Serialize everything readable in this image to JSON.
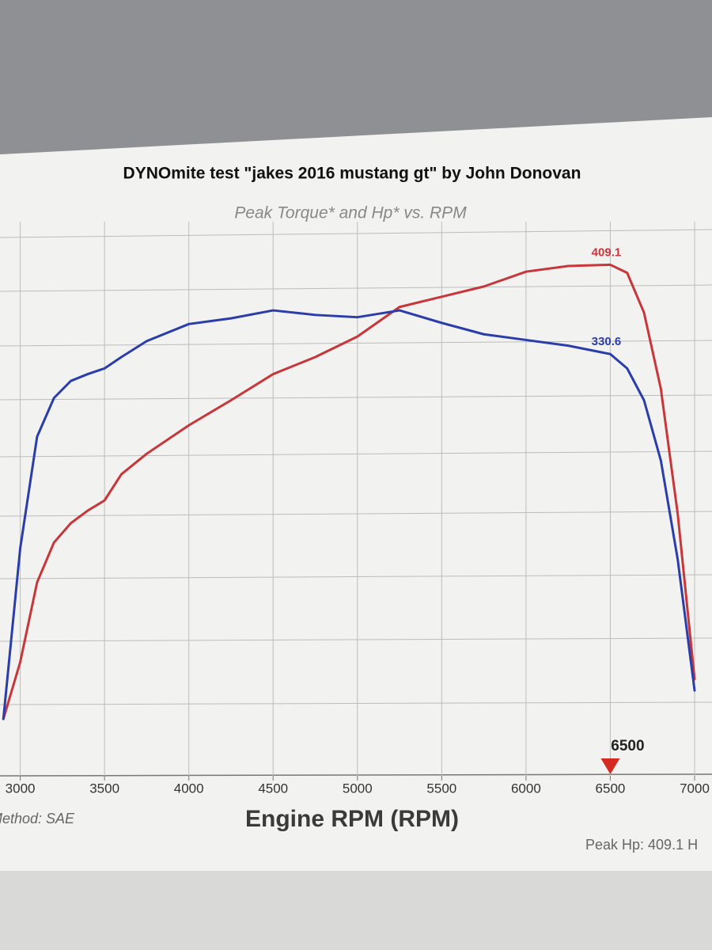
{
  "chart_data": {
    "type": "line",
    "title": "DYNOmite test \"jakes 2016 mustang gt\" by John Donovan",
    "subtitle": "Peak Torque* and Hp* vs. RPM",
    "x_label": "Engine RPM (RPM)",
    "method_note": "Method: SAE",
    "peak_note": "Peak Hp: 409.1 H",
    "x": [
      2900,
      3000,
      3100,
      3200,
      3300,
      3400,
      3500,
      3600,
      3750,
      4000,
      4250,
      4500,
      4750,
      5000,
      5250,
      5500,
      5750,
      6000,
      6250,
      6500,
      6600,
      6700,
      6800,
      6900,
      7000
    ],
    "series": [
      {
        "color": "#c8363a",
        "marked_value": 409.1,
        "values": [
          10,
          60,
          130,
          165,
          182,
          193,
          202,
          225,
          243,
          268,
          290,
          313,
          328,
          346,
          372,
          381,
          390,
          403,
          408,
          409.1,
          402,
          367,
          300,
          190,
          45
        ]
      },
      {
        "color": "#2b3daa",
        "marked_value": 330.6,
        "values": [
          10,
          160,
          258,
          292,
          307,
          313,
          318,
          328,
          342,
          357,
          362,
          369,
          365,
          363,
          369,
          358,
          348,
          343,
          338,
          330.6,
          318,
          290,
          237,
          150,
          35
        ]
      }
    ],
    "marker_x": 6500,
    "marker_color": "#d42a22",
    "xlim": [
      2880,
      7000
    ],
    "ylim": [
      -40,
      440
    ],
    "xticks": [
      3000,
      3500,
      4000,
      4500,
      5000,
      5500,
      6000,
      6500,
      7000
    ],
    "grid": true
  }
}
